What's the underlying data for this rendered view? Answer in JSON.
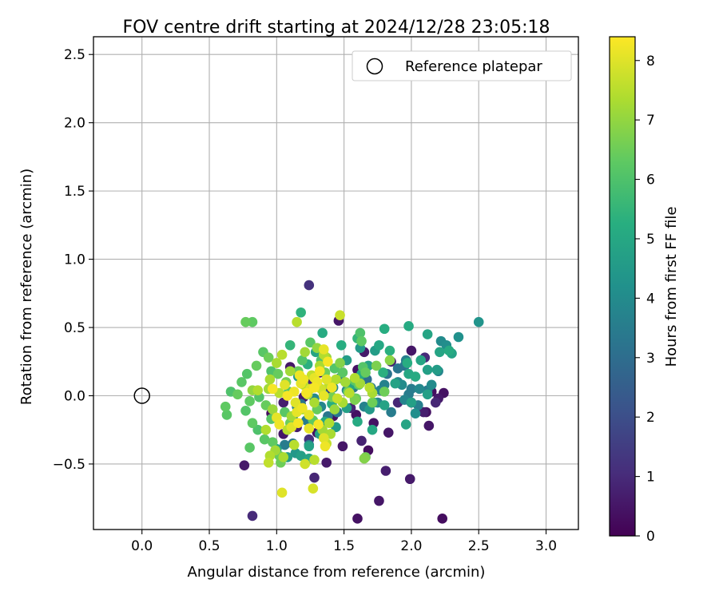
{
  "chart_data": {
    "type": "scatter",
    "title": "FOV centre drift starting at 2024/12/28 23:05:18",
    "xlabel": "Angular distance from reference (arcmin)",
    "ylabel": "Rotation from reference (arcmin)",
    "xlim": [
      -0.36,
      3.24
    ],
    "ylim": [
      -0.98,
      2.63
    ],
    "xticks": [
      0.0,
      0.5,
      1.0,
      1.5,
      2.0,
      2.5,
      3.0
    ],
    "xtick_labels": [
      "0.0",
      "0.5",
      "1.0",
      "1.5",
      "2.0",
      "2.5",
      "3.0"
    ],
    "yticks": [
      -0.5,
      0.0,
      0.5,
      1.0,
      1.5,
      2.0,
      2.5
    ],
    "ytick_labels": [
      "−0.5",
      "0.0",
      "0.5",
      "1.0",
      "1.5",
      "2.0",
      "2.5"
    ],
    "grid": true,
    "legend": {
      "placement": "upper-right",
      "entries": [
        "Reference platepar"
      ]
    },
    "reference_point": {
      "x": 0.0,
      "y": 0.0
    },
    "colorbar": {
      "label": "Hours from first FF file",
      "range": [
        0,
        8.4
      ],
      "ticks": [
        0,
        1,
        2,
        3,
        4,
        5,
        6,
        7,
        8
      ],
      "tick_labels": [
        "0",
        "1",
        "2",
        "3",
        "4",
        "5",
        "6",
        "7",
        "8"
      ],
      "colormap": "viridis"
    },
    "points": [
      [
        1.24,
        0.81,
        1.2
      ],
      [
        1.46,
        0.55,
        0.5
      ],
      [
        1.65,
        0.32,
        0.6
      ],
      [
        1.6,
        0.19,
        0.4
      ],
      [
        1.85,
        0.25,
        0.8
      ],
      [
        2.0,
        0.33,
        0.5
      ],
      [
        2.1,
        0.28,
        1.0
      ],
      [
        2.15,
        0.03,
        0.3
      ],
      [
        2.2,
        -0.02,
        0.6
      ],
      [
        2.24,
        0.02,
        0.4
      ],
      [
        2.18,
        -0.05,
        0.9
      ],
      [
        2.11,
        -0.12,
        0.4
      ],
      [
        2.13,
        -0.22,
        0.5
      ],
      [
        2.09,
        -0.12,
        0.7
      ],
      [
        2.0,
        -0.05,
        0.3
      ],
      [
        1.9,
        -0.05,
        0.9
      ],
      [
        1.83,
        -0.27,
        0.5
      ],
      [
        1.72,
        -0.2,
        0.4
      ],
      [
        1.68,
        -0.4,
        0.3
      ],
      [
        1.63,
        -0.33,
        0.8
      ],
      [
        1.49,
        -0.37,
        0.5
      ],
      [
        1.37,
        -0.49,
        0.6
      ],
      [
        1.28,
        -0.6,
        0.9
      ],
      [
        1.3,
        -0.27,
        0.4
      ],
      [
        1.24,
        -0.32,
        1.1
      ],
      [
        1.15,
        -0.23,
        0.7
      ],
      [
        1.05,
        -0.28,
        0.5
      ],
      [
        0.96,
        -0.13,
        0.3
      ],
      [
        0.76,
        -0.51,
        0.6
      ],
      [
        0.82,
        -0.88,
        1.0
      ],
      [
        1.6,
        -0.9,
        0.4
      ],
      [
        1.76,
        -0.77,
        0.5
      ],
      [
        1.99,
        -0.61,
        0.6
      ],
      [
        2.23,
        -0.9,
        0.3
      ],
      [
        1.81,
        -0.55,
        0.7
      ],
      [
        1.59,
        -0.14,
        0.4
      ],
      [
        1.55,
        -0.09,
        0.8
      ],
      [
        1.37,
        0.04,
        0.6
      ],
      [
        1.1,
        0.21,
        0.5
      ],
      [
        1.2,
        -0.01,
        0.6
      ],
      [
        1.42,
        -0.15,
        0.4
      ],
      [
        1.25,
        0.11,
        0.9
      ],
      [
        1.05,
        -0.05,
        0.7
      ],
      [
        1.32,
        0.17,
        0.5
      ],
      [
        1.7,
        0.06,
        3.5
      ],
      [
        1.8,
        0.08,
        3.7
      ],
      [
        1.9,
        0.1,
        3.9
      ],
      [
        2.0,
        0.05,
        3.5
      ],
      [
        1.95,
        -0.03,
        3.8
      ],
      [
        2.05,
        -0.07,
        3.6
      ],
      [
        2.15,
        0.08,
        4.0
      ],
      [
        1.75,
        -0.05,
        3.8
      ],
      [
        1.85,
        -0.12,
        3.5
      ],
      [
        1.65,
        -0.08,
        3.7
      ],
      [
        1.58,
        -0.02,
        3.4
      ],
      [
        1.52,
        0.04,
        3.8
      ],
      [
        1.45,
        -0.12,
        3.4
      ],
      [
        1.35,
        0.01,
        3.6
      ],
      [
        1.28,
        -0.02,
        3.9
      ],
      [
        1.22,
        -0.18,
        3.5
      ],
      [
        1.18,
        -0.06,
        3.2
      ],
      [
        1.12,
        -0.35,
        3.3
      ],
      [
        1.06,
        -0.36,
        3.5
      ],
      [
        1.24,
        -0.36,
        3.4
      ],
      [
        1.38,
        -0.15,
        3.3
      ],
      [
        1.9,
        0.2,
        3.3
      ],
      [
        1.96,
        0.26,
        3.6
      ],
      [
        2.22,
        0.4,
        4.0
      ],
      [
        2.26,
        0.37,
        4.1
      ],
      [
        2.35,
        0.43,
        4.2
      ],
      [
        2.5,
        0.54,
        4.3
      ],
      [
        2.2,
        0.18,
        3.8
      ],
      [
        2.12,
        0.04,
        3.5
      ],
      [
        2.06,
        0.05,
        3.9
      ],
      [
        1.95,
        0.22,
        3.3
      ],
      [
        1.82,
        0.16,
        3.2
      ],
      [
        1.67,
        0.12,
        3.1
      ],
      [
        1.57,
        0.06,
        3.3
      ],
      [
        1.47,
        0.13,
        3.6
      ],
      [
        1.42,
        0.06,
        3.9
      ],
      [
        1.3,
        0.09,
        3.7
      ],
      [
        1.33,
        -0.08,
        3.8
      ],
      [
        1.15,
        -0.08,
        3.6
      ],
      [
        1.12,
        -0.16,
        3.9
      ],
      [
        1.93,
        0.08,
        4.0
      ],
      [
        2.03,
        -0.13,
        4.1
      ],
      [
        1.98,
        0.01,
        3.5
      ],
      [
        1.77,
        0.04,
        3.7
      ],
      [
        1.8,
        0.49,
        5.2
      ],
      [
        1.76,
        0.37,
        5.0
      ],
      [
        1.84,
        0.33,
        5.3
      ],
      [
        1.98,
        0.51,
        5.1
      ],
      [
        2.12,
        0.45,
        4.9
      ],
      [
        2.21,
        0.32,
        4.9
      ],
      [
        2.28,
        0.33,
        5.1
      ],
      [
        2.3,
        0.31,
        4.8
      ],
      [
        2.19,
        0.19,
        4.6
      ],
      [
        2.12,
        0.19,
        4.7
      ],
      [
        2.07,
        0.26,
        4.9
      ],
      [
        1.97,
        0.24,
        5.2
      ],
      [
        1.98,
        0.16,
        5.0
      ],
      [
        2.0,
        -0.05,
        4.7
      ],
      [
        2.12,
        0.01,
        4.7
      ],
      [
        1.96,
        -0.21,
        4.9
      ],
      [
        1.8,
        -0.07,
        4.8
      ],
      [
        1.72,
        -0.05,
        4.6
      ],
      [
        1.69,
        -0.1,
        4.5
      ],
      [
        1.71,
        -0.25,
        5.0
      ],
      [
        1.6,
        -0.19,
        5.1
      ],
      [
        1.52,
        -0.09,
        4.7
      ],
      [
        1.44,
        -0.23,
        4.6
      ],
      [
        1.32,
        -0.28,
        4.8
      ],
      [
        1.24,
        -0.37,
        4.8
      ],
      [
        1.14,
        -0.42,
        4.4
      ],
      [
        1.08,
        -0.45,
        4.6
      ],
      [
        1.0,
        -0.39,
        4.8
      ],
      [
        1.18,
        -0.44,
        4.7
      ],
      [
        1.24,
        -0.46,
        4.9
      ],
      [
        1.36,
        -0.19,
        5.0
      ],
      [
        1.41,
        -0.06,
        5.2
      ],
      [
        1.52,
        0.26,
        4.6
      ],
      [
        1.6,
        0.42,
        5.5
      ],
      [
        1.73,
        0.33,
        4.6
      ],
      [
        1.68,
        0.22,
        4.8
      ],
      [
        1.62,
        0.35,
        4.5
      ],
      [
        1.48,
        0.37,
        5.2
      ],
      [
        1.34,
        0.46,
        5.1
      ],
      [
        1.18,
        0.61,
        5.4
      ],
      [
        1.29,
        0.32,
        4.9
      ],
      [
        1.23,
        0.23,
        5.3
      ],
      [
        1.1,
        0.37,
        5.5
      ],
      [
        1.16,
        0.14,
        4.5
      ],
      [
        1.56,
        0.08,
        4.9
      ],
      [
        1.63,
        0.16,
        5.1
      ],
      [
        1.88,
        0.09,
        4.8
      ],
      [
        2.03,
        0.14,
        5.1
      ],
      [
        1.79,
        0.17,
        5.3
      ],
      [
        0.62,
        -0.08,
        6.3
      ],
      [
        0.63,
        -0.14,
        6.2
      ],
      [
        0.66,
        0.03,
        6.0
      ],
      [
        0.71,
        0.01,
        6.4
      ],
      [
        0.74,
        0.1,
        6.2
      ],
      [
        0.77,
        0.54,
        6.4
      ],
      [
        0.82,
        0.54,
        6.3
      ],
      [
        0.78,
        0.16,
        6.1
      ],
      [
        0.85,
        0.22,
        6.4
      ],
      [
        0.9,
        0.32,
        6.2
      ],
      [
        0.94,
        0.28,
        6.5
      ],
      [
        0.96,
        0.18,
        6.0
      ],
      [
        0.8,
        -0.04,
        6.3
      ],
      [
        0.87,
        -0.01,
        6.1
      ],
      [
        0.92,
        -0.07,
        6.4
      ],
      [
        0.96,
        -0.17,
        6.2
      ],
      [
        0.82,
        -0.2,
        6.3
      ],
      [
        0.86,
        -0.25,
        6.0
      ],
      [
        0.91,
        -0.32,
        6.2
      ],
      [
        0.97,
        -0.34,
        6.3
      ],
      [
        1.02,
        -0.44,
        6.4
      ],
      [
        1.03,
        -0.49,
        6.5
      ],
      [
        0.8,
        -0.38,
        6.2
      ],
      [
        0.77,
        -0.11,
        6.1
      ],
      [
        1.16,
        0.18,
        6.4
      ],
      [
        1.19,
        0.26,
        6.1
      ],
      [
        1.25,
        0.39,
        6.2
      ],
      [
        1.33,
        0.26,
        6.0
      ],
      [
        1.36,
        0.17,
        6.5
      ],
      [
        1.43,
        0.2,
        6.1
      ],
      [
        1.49,
        0.17,
        6.2
      ],
      [
        1.62,
        0.46,
        6.0
      ],
      [
        1.63,
        0.4,
        6.3
      ],
      [
        1.64,
        0.21,
        6.1
      ],
      [
        1.66,
        0.17,
        6.4
      ],
      [
        1.61,
        0.08,
        6.3
      ],
      [
        1.59,
        -0.02,
        6.4
      ],
      [
        1.66,
        -0.45,
        6.6
      ],
      [
        1.65,
        -0.46,
        6.8
      ],
      [
        1.71,
        -0.05,
        6.5
      ],
      [
        1.74,
        0.22,
        6.7
      ],
      [
        1.8,
        0.03,
        6.5
      ],
      [
        1.84,
        0.26,
        6.9
      ],
      [
        1.58,
        0.11,
        6.2
      ],
      [
        1.47,
        0.24,
        6.8
      ],
      [
        1.07,
        0.1,
        6.6
      ],
      [
        1.09,
        0.03,
        6.1
      ],
      [
        1.01,
        0.16,
        6.4
      ],
      [
        1.06,
        -0.12,
        6.2
      ],
      [
        1.1,
        -0.2,
        6.5
      ],
      [
        1.27,
        -0.18,
        6.3
      ],
      [
        1.3,
        -0.1,
        6.4
      ],
      [
        1.41,
        -0.01,
        6.6
      ],
      [
        1.53,
        0.03,
        6.5
      ],
      [
        1.58,
        -0.03,
        6.7
      ],
      [
        1.0,
        0.24,
        7.3
      ],
      [
        1.04,
        0.3,
        7.5
      ],
      [
        1.1,
        0.18,
        7.2
      ],
      [
        1.15,
        0.54,
        7.5
      ],
      [
        1.2,
        0.08,
        7.4
      ],
      [
        1.26,
        0.15,
        7.6
      ],
      [
        1.32,
        0.22,
        7.3
      ],
      [
        1.37,
        0.28,
        7.1
      ],
      [
        1.44,
        0.12,
        7.4
      ],
      [
        1.47,
        0.59,
        7.7
      ],
      [
        1.51,
        0.1,
        7.2
      ],
      [
        1.54,
        0.02,
        7.5
      ],
      [
        1.49,
        -0.05,
        7.3
      ],
      [
        1.43,
        -0.1,
        7.1
      ],
      [
        1.39,
        -0.2,
        7.4
      ],
      [
        1.34,
        -0.25,
        7.2
      ],
      [
        1.37,
        -0.35,
        7.6
      ],
      [
        1.4,
        -0.28,
        7.3
      ],
      [
        1.28,
        -0.47,
        7.5
      ],
      [
        1.27,
        -0.68,
        7.9
      ],
      [
        1.21,
        -0.5,
        7.8
      ],
      [
        1.13,
        -0.36,
        7.5
      ],
      [
        1.05,
        -0.45,
        7.3
      ],
      [
        0.95,
        -0.44,
        7.4
      ],
      [
        0.94,
        -0.49,
        7.6
      ],
      [
        0.99,
        -0.4,
        7.2
      ],
      [
        1.04,
        -0.71,
        8.0
      ],
      [
        0.92,
        -0.25,
        7.4
      ],
      [
        0.97,
        -0.1,
        7.1
      ],
      [
        1.02,
        0.02,
        7.5
      ],
      [
        0.94,
        0.05,
        7.2
      ],
      [
        0.86,
        0.04,
        7.4
      ],
      [
        0.82,
        0.04,
        7.0
      ],
      [
        0.95,
        0.12,
        7.3
      ],
      [
        1.08,
        -0.25,
        7.5
      ],
      [
        1.11,
        -0.15,
        7.2
      ],
      [
        1.19,
        -0.1,
        7.4
      ],
      [
        1.23,
        0.01,
        7.6
      ],
      [
        1.28,
        -0.05,
        7.3
      ],
      [
        1.33,
        0.05,
        7.8
      ],
      [
        1.39,
        0.08,
        7.5
      ],
      [
        1.45,
        -0.02,
        7.7
      ],
      [
        1.58,
        0.13,
        7.4
      ],
      [
        1.62,
        0.09,
        7.2
      ],
      [
        1.69,
        0.06,
        7.5
      ],
      [
        1.71,
        0.02,
        7.3
      ],
      [
        1.3,
        0.35,
        7.0
      ],
      [
        1.35,
        0.3,
        7.4
      ],
      [
        1.21,
        0.32,
        7.2
      ],
      [
        1.35,
        0.34,
        8.1
      ],
      [
        1.38,
        0.25,
        8.3
      ],
      [
        1.3,
        0.1,
        8.2
      ],
      [
        1.25,
        0.05,
        8.0
      ],
      [
        1.22,
        0.02,
        8.3
      ],
      [
        1.18,
        0.09,
        8.1
      ],
      [
        1.13,
        0.03,
        8.2
      ],
      [
        1.08,
        0.0,
        8.3
      ],
      [
        1.14,
        -0.05,
        8.0
      ],
      [
        1.19,
        -0.09,
        8.2
      ],
      [
        1.24,
        -0.14,
        8.1
      ],
      [
        1.31,
        -0.21,
        8.3
      ],
      [
        1.35,
        -0.31,
        8.0
      ],
      [
        1.36,
        -0.37,
        8.2
      ],
      [
        1.24,
        -0.24,
        8.1
      ],
      [
        1.16,
        -0.2,
        8.3
      ],
      [
        1.11,
        -0.23,
        8.0
      ],
      [
        1.02,
        -0.21,
        8.2
      ],
      [
        1.0,
        -0.16,
        8.1
      ],
      [
        0.97,
        0.05,
        8.3
      ],
      [
        1.06,
        0.08,
        8.0
      ],
      [
        1.17,
        0.15,
        8.2
      ],
      [
        1.28,
        0.13,
        8.1
      ],
      [
        1.32,
        0.18,
        8.3
      ],
      [
        1.37,
        0.12,
        8.0
      ],
      [
        1.41,
        0.06,
        8.2
      ],
      [
        1.35,
        0.0,
        8.1
      ],
      [
        1.28,
        0.06,
        8.3
      ],
      [
        1.2,
        0.12,
        8.2
      ],
      [
        1.15,
        -0.12,
        8.1
      ]
    ]
  }
}
